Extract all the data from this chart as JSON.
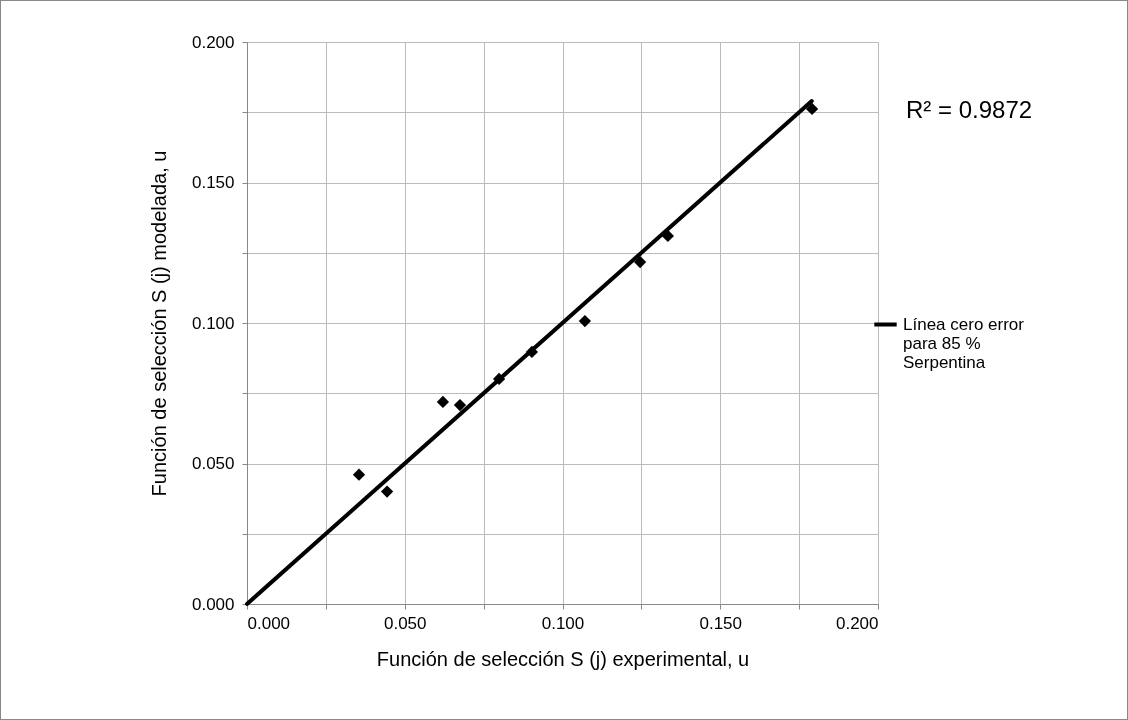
{
  "chart_data": {
    "type": "scatter",
    "xlabel": "Función de selección S (j) experimental, u",
    "ylabel": "Función de selección S (j) modelada, u",
    "x": [
      0.0355,
      0.0444,
      0.0621,
      0.0675,
      0.0799,
      0.0903,
      0.1071,
      0.1246,
      0.1334,
      0.1791
    ],
    "series": [
      {
        "color": "#000000",
        "values": [
          0.046,
          0.04,
          0.0719,
          0.0708,
          0.0801,
          0.0897,
          0.1007,
          0.1217,
          0.131,
          0.1762
        ]
      },
      {
        "type": "line",
        "marker": "none",
        "name": "Línea cero error para 85 % Serpentina",
        "color": "#000000",
        "x": [
          0,
          0.179
        ],
        "values": [
          0,
          0.179
        ]
      }
    ],
    "marker": "diamond",
    "legend": "right",
    "grid": true,
    "xlim": [
      0,
      0.2
    ],
    "ylim": [
      0,
      0.2
    ],
    "xticks": [
      {
        "value": 0,
        "label": "0.000"
      },
      {
        "value": 0.025,
        "label": null
      },
      {
        "value": 0.05,
        "label": "0.050"
      },
      {
        "value": 0.075,
        "label": null
      },
      {
        "value": 0.1,
        "label": "0.100"
      },
      {
        "value": 0.125,
        "label": null
      },
      {
        "value": 0.15,
        "label": "0.150"
      },
      {
        "value": 0.175,
        "label": null
      },
      {
        "value": 0.2,
        "label": "0.200"
      }
    ],
    "yticks": [
      {
        "value": 0,
        "label": "0.000"
      },
      {
        "value": 0.025,
        "label": null
      },
      {
        "value": 0.05,
        "label": "0.050"
      },
      {
        "value": 0.075,
        "label": null
      },
      {
        "value": 0.1,
        "label": "0.100"
      },
      {
        "value": 0.125,
        "label": null
      },
      {
        "value": 0.15,
        "label": "0.150"
      },
      {
        "value": 0.175,
        "label": null
      },
      {
        "value": 0.2,
        "label": "0.200"
      }
    ],
    "annotations": [
      "R² = 0.9872"
    ]
  }
}
